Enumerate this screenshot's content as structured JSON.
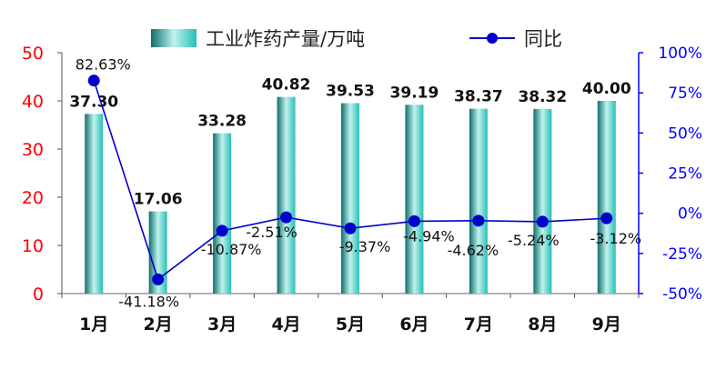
{
  "chart_data": {
    "type": "bar",
    "categories": [
      "1月",
      "2月",
      "3月",
      "4月",
      "5月",
      "6月",
      "7月",
      "8月",
      "9月"
    ],
    "series": [
      {
        "name": "工业炸药产量/万吨",
        "type": "bar",
        "axis": "left",
        "values": [
          37.3,
          17.06,
          33.28,
          40.82,
          39.53,
          39.19,
          38.37,
          38.32,
          40.0
        ],
        "labels": [
          "37.30",
          "17.06",
          "33.28",
          "40.82",
          "39.53",
          "39.19",
          "38.37",
          "38.32",
          "40.00"
        ]
      },
      {
        "name": "同比",
        "type": "line",
        "axis": "right",
        "values": [
          82.63,
          -41.18,
          -10.87,
          -2.51,
          -9.37,
          -4.94,
          -4.62,
          -5.24,
          -3.12
        ],
        "labels": [
          "82.63%",
          "-41.18%",
          "-10.87%",
          "-2.51%",
          "-9.37%",
          "-4.94%",
          "-4.62%",
          "-5.24%",
          "-3.12%"
        ]
      }
    ],
    "ylim_left": [
      0,
      50
    ],
    "yticks_left": [
      "0",
      "10",
      "20",
      "30",
      "40",
      "50"
    ],
    "ylim_right": [
      -50,
      100
    ],
    "yticks_right": [
      "-50%",
      "-25%",
      "0%",
      "25%",
      "50%",
      "75%",
      "100%"
    ],
    "legend_position": "top",
    "grid": false,
    "colors": {
      "bar_dark": "#0f6f6c",
      "bar_mid": "#2bbdb6",
      "bar_light": "#bff3ef",
      "line": "#0000cc",
      "left_axis": "#ff0000",
      "right_axis": "#0000ff"
    }
  }
}
